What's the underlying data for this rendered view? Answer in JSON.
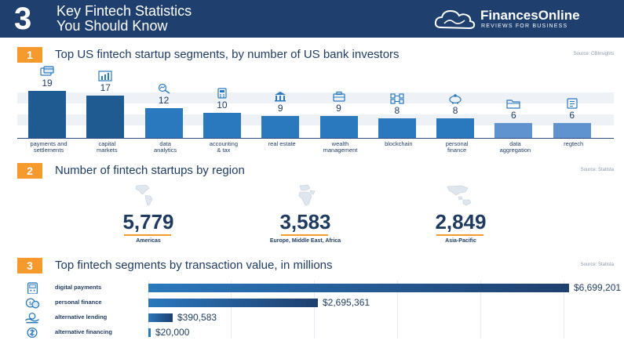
{
  "header": {
    "number": "3",
    "title_line1": "Key Fintech Statistics",
    "title_line2": "You Should Know",
    "brand_name": "FinancesOnline",
    "brand_tagline": "REVIEWS FOR BUSINESS",
    "background_color": "#1f3f6e"
  },
  "colors": {
    "accent": "#f79a2e",
    "navy": "#1e3a5f",
    "bar_dark": "#1f5a91",
    "bar_mid": "#2a78bd",
    "bar_light": "#5f93cf"
  },
  "sections": [
    {
      "number": "1",
      "title": "Top US fintech startup segments, by number of US bank investors",
      "source": "Source: CBInsights"
    },
    {
      "number": "2",
      "title": "Number of fintech startups by region",
      "source": "Source: Statista"
    },
    {
      "number": "3",
      "title": "Top fintech segments by transaction value, in millions",
      "source": "Source: Statista"
    }
  ],
  "chart_data": [
    {
      "type": "bar",
      "categories": [
        [
          "payments and",
          "settlements"
        ],
        [
          "capital",
          "markets"
        ],
        [
          "data",
          "analytics"
        ],
        [
          "accounting",
          "& tax"
        ],
        [
          "real estate"
        ],
        [
          "wealth",
          "management"
        ],
        [
          "blockchain"
        ],
        [
          "personal",
          "finance"
        ],
        [
          "data",
          "aggregation"
        ],
        [
          "regtech"
        ]
      ],
      "values": [
        19,
        17,
        12,
        10,
        9,
        9,
        8,
        8,
        6,
        6
      ],
      "icons": [
        "payments-icon",
        "chart-icon",
        "analytics-icon",
        "calculator-icon",
        "building-icon",
        "briefcase-icon",
        "blockchain-icon",
        "piggy-bank-icon",
        "folder-icon",
        "document-icon"
      ],
      "title": "Top US fintech startup segments, by number of US bank investors",
      "ylim": [
        0,
        20
      ]
    },
    {
      "type": "table",
      "title": "Number of fintech startups by region",
      "rows": [
        {
          "value": "5,779",
          "region": "Americas",
          "icon": "americas-map-icon"
        },
        {
          "value": "3,583",
          "region": "Europe, Middle East, Africa",
          "icon": "emea-map-icon"
        },
        {
          "value": "2,849",
          "region": "Asia-Pacific",
          "icon": "asia-pacific-map-icon"
        }
      ]
    },
    {
      "type": "bar",
      "orientation": "horizontal",
      "title": "Top fintech segments by transaction value, in millions",
      "categories": [
        "digital payments",
        "personal finance",
        "alternative lending",
        "alternative financing"
      ],
      "values": [
        6699201,
        2695361,
        390583,
        20000
      ],
      "value_labels": [
        "$6,699,201",
        "$2,695,361",
        "$390,583",
        "$20,000"
      ],
      "icons": [
        "payment-terminal-icon",
        "coins-icon",
        "lending-icon",
        "financing-icon"
      ],
      "xlim": [
        0,
        7000000
      ]
    }
  ]
}
